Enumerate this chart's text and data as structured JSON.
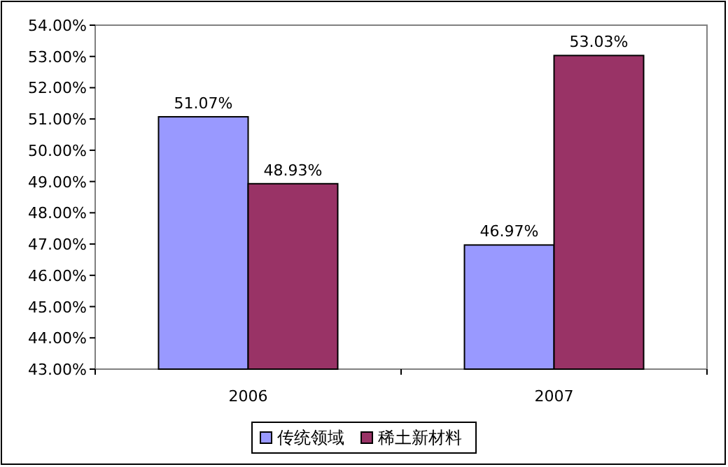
{
  "chart_data": {
    "type": "bar",
    "categories": [
      "2006",
      "2007"
    ],
    "series": [
      {
        "name": "传统领域",
        "color": "#9999ff",
        "values": [
          51.07,
          46.97
        ],
        "value_labels": [
          "51.07%",
          "46.97%"
        ]
      },
      {
        "name": "稀土新材料",
        "color": "#993366",
        "values": [
          48.93,
          53.03
        ],
        "value_labels": [
          "48.93%",
          "53.03%"
        ]
      }
    ],
    "ylim": [
      43,
      54
    ],
    "yticks": [
      {
        "value": 43,
        "label": "43.00%"
      },
      {
        "value": 44,
        "label": "44.00%"
      },
      {
        "value": 45,
        "label": "45.00%"
      },
      {
        "value": 46,
        "label": "46.00%"
      },
      {
        "value": 47,
        "label": "47.00%"
      },
      {
        "value": 48,
        "label": "48.00%"
      },
      {
        "value": 49,
        "label": "49.00%"
      },
      {
        "value": 50,
        "label": "50.00%"
      },
      {
        "value": 51,
        "label": "51.00%"
      },
      {
        "value": 52,
        "label": "52.00%"
      },
      {
        "value": 53,
        "label": "53.00%"
      },
      {
        "value": 54,
        "label": "54.00%"
      }
    ],
    "grid": false,
    "legend": "bottom"
  }
}
